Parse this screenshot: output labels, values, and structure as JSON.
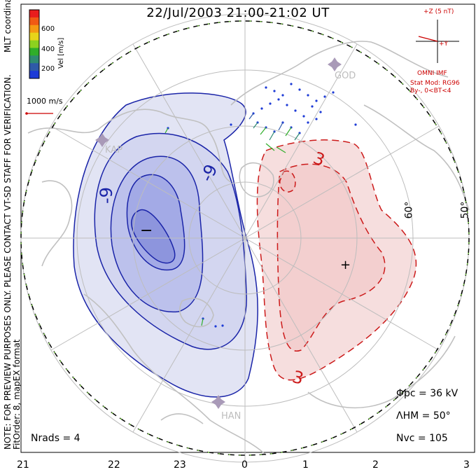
{
  "title": "22/Jul/2003 21:00-21:02 UT",
  "side_note": "NOTE: FOR PREVIEW PURPOSES ONLY. PLEASE CONTACT VT-SD STAFF FOR VERIFICATION.",
  "side_note_2": "FitOrder: 8,  mapEX format",
  "coords_label": "MLT coordinates",
  "velocity_scale": {
    "label": "Vel [m/s]",
    "ticks": [
      "600",
      "400",
      "200"
    ],
    "colors": [
      "#e81d1d",
      "#f05a14",
      "#f59a13",
      "#e8d51a",
      "#8cd11f",
      "#2fae2a",
      "#2f8a72",
      "#2f5aa8",
      "#1d3bd6"
    ]
  },
  "ref_vector_label": "1000 m/s",
  "imf": {
    "z_label": "+Z (5 nT)",
    "y_label": "+Y",
    "source": "OMNI IMF",
    "model": "Stat Mod: RG96",
    "condition": "By-,  0<BT<4"
  },
  "stations": [
    "KAP",
    "GOD",
    "HAN"
  ],
  "contours": {
    "negative_label": "-9",
    "positive_label": "3",
    "min_marker": "−",
    "max_marker": "+",
    "neg_color": "#1a24a8",
    "pos_color": "#cc1a1a"
  },
  "stats": {
    "phi_pc": "Φpc  =  36 kV",
    "lambda_hm": "ΛHM  =  50°",
    "n_vc": "Nvc  =  105",
    "n_rads": "Nrads  =  4"
  },
  "lat_labels": [
    "60°",
    "50°"
  ],
  "mlt_ticks": [
    "21",
    "22",
    "23",
    "0",
    "1",
    "2",
    "3"
  ]
}
